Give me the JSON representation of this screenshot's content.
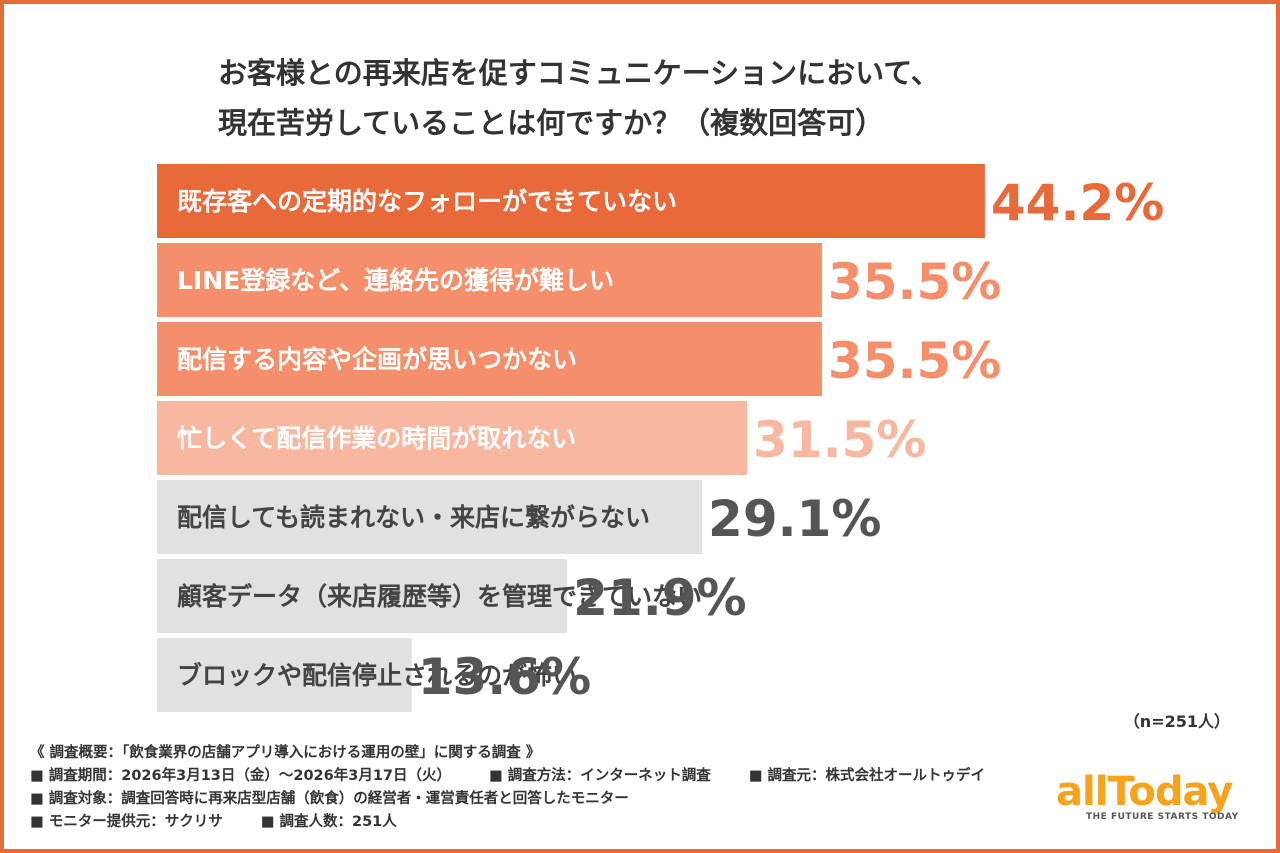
{
  "title": {
    "line1": "お客様との再来店を促すコミュニケーションにおいて、",
    "line2": "現在苦労していることは何ですか？（複数回答可）"
  },
  "chart_data": {
    "type": "bar",
    "orientation": "horizontal",
    "categories": [
      "既存客への定期的なフォローができていない",
      "LINE登録など、連絡先の獲得が難しい",
      "配信する内容や企画が思いつかない",
      "忙しくて配信作業の時間が取れない",
      "配信しても読まれない・来店に繋がらない",
      "顧客データ（来店履歴等）を管理できていない",
      "ブロックや配信停止されるのが怖い"
    ],
    "values": [
      44.2,
      35.5,
      35.5,
      31.5,
      29.1,
      21.9,
      13.6
    ],
    "value_labels": [
      "44.2%",
      "35.5%",
      "35.5%",
      "31.5%",
      "29.1%",
      "21.9%",
      "13.6%"
    ],
    "bar_colors": [
      "#e8693a",
      "#f58f6b",
      "#f58f6b",
      "#f8b7a0",
      "#e1e1e1",
      "#e1e1e1",
      "#e1e1e1"
    ],
    "label_colors": [
      "#ffffff",
      "#ffffff",
      "#ffffff",
      "#ffffff",
      "#444444",
      "#444444",
      "#444444"
    ],
    "value_colors": [
      "#e8693a",
      "#f58f6b",
      "#f58f6b",
      "#f8b7a0",
      "#555555",
      "#555555",
      "#555555"
    ],
    "xlim": [
      0,
      50
    ],
    "grid": false,
    "legend": "none"
  },
  "sample_size": "（n=251人）",
  "footer": {
    "overview": "《 調査概要：「飲食業界の店舗アプリ導入における運用の壁」に関する調査 》",
    "period": "■ 調査期間：2026年3月13日（金）〜2026年3月17日（火）",
    "method": "■ 調査方法：インターネット調査",
    "source": "■ 調査元：株式会社オールトゥデイ",
    "target": "■ 調査対象：調査回答時に再来店型店舗（飲食）の経営者・運営責任者と回答したモニター",
    "provider": "■ モニター提供元：サクリサ",
    "count": "■ 調査人数：251人"
  },
  "logo": {
    "word": "allToday",
    "tagline": "THE FUTURE STARTS TODAY"
  },
  "colors": {
    "accent": "#e8693a",
    "frame": "#e8693a",
    "logo": "#f7a21b"
  }
}
